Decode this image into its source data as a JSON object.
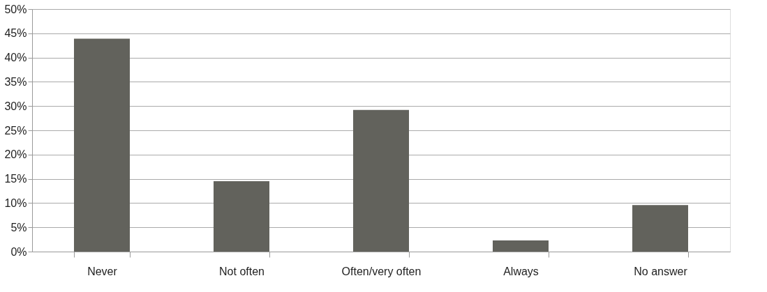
{
  "chart_data": {
    "type": "bar",
    "categories": [
      "Never",
      "Not often",
      "Often/very often",
      "Always",
      "No answer"
    ],
    "values": [
      43.9,
      14.5,
      29.2,
      2.3,
      9.6
    ],
    "color": "#62625c",
    "ylim": [
      0,
      50
    ],
    "yticks": [
      {
        "value": 0,
        "label": "0%"
      },
      {
        "value": 5,
        "label": "5%"
      },
      {
        "value": 10,
        "label": "10%"
      },
      {
        "value": 15,
        "label": "15%"
      },
      {
        "value": 20,
        "label": "20%"
      },
      {
        "value": 25,
        "label": "25%"
      },
      {
        "value": 30,
        "label": "30%"
      },
      {
        "value": 35,
        "label": "35%"
      },
      {
        "value": 40,
        "label": "40%"
      },
      {
        "value": 45,
        "label": "45%"
      },
      {
        "value": 50,
        "label": "50%"
      }
    ],
    "grid": "y"
  }
}
